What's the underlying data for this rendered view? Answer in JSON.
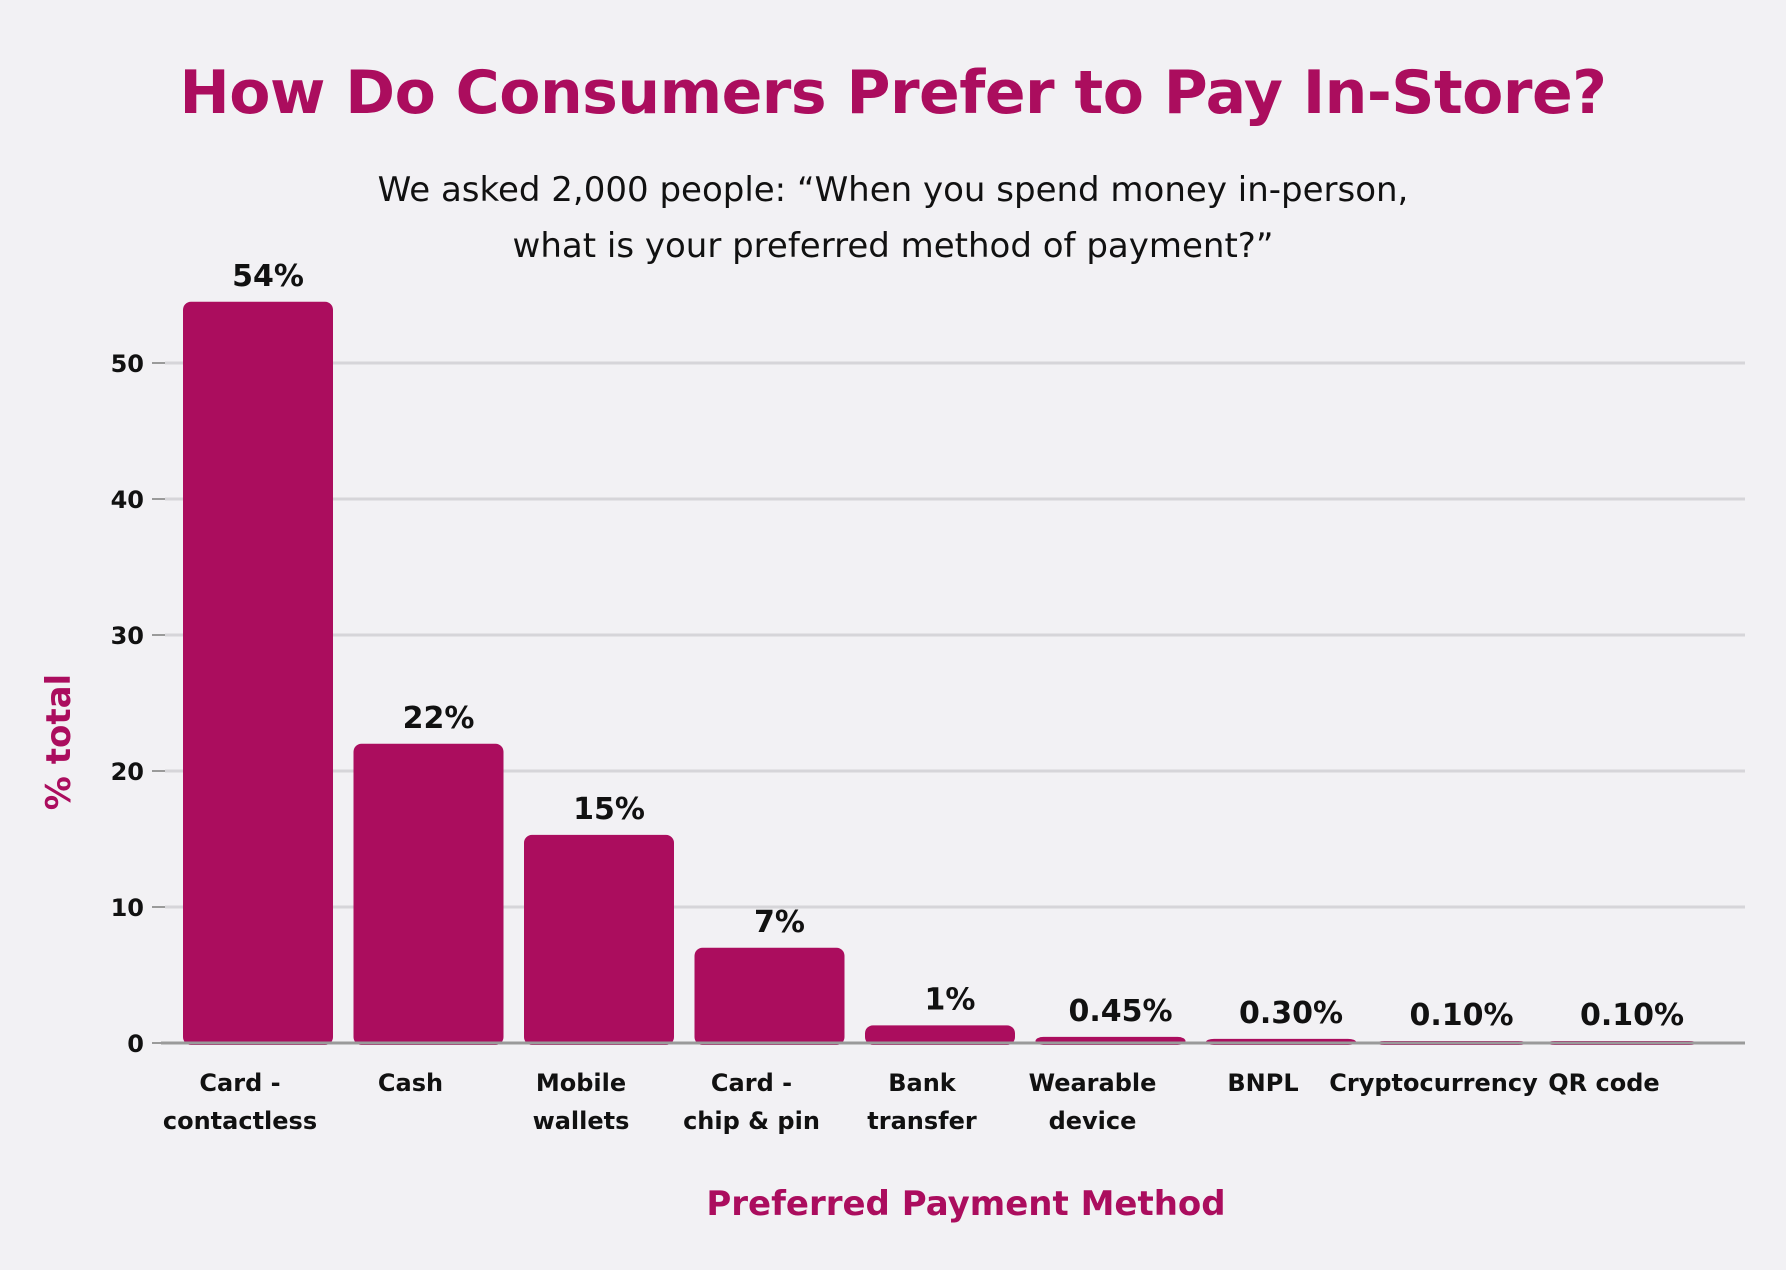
{
  "chart_data": {
    "type": "bar",
    "title": "How Do Consumers Prefer to Pay In-Store?",
    "subtitle_lines": [
      "We asked 2,000 people: “When you spend money in-person,",
      "what is your preferred method of payment?”"
    ],
    "xlabel": "Preferred Payment Method",
    "ylabel": "% total",
    "ylim": [
      0,
      55
    ],
    "yticks": [
      0,
      10,
      20,
      30,
      40,
      50
    ],
    "grid": true,
    "bar_color": "#ab0d5e",
    "categories": [
      [
        "Card -",
        "contactless"
      ],
      [
        "Cash"
      ],
      [
        "Mobile",
        "wallets"
      ],
      [
        "Card -",
        "chip & pin"
      ],
      [
        "Bank",
        "transfer"
      ],
      [
        "Wearable",
        "device"
      ],
      [
        "BNPL"
      ],
      [
        "Cryptocurrency"
      ],
      [
        "QR code"
      ]
    ],
    "values": [
      54.5,
      22,
      15.3,
      7,
      1.3,
      0.45,
      0.3,
      0.1,
      0.1
    ],
    "value_labels": [
      "54%",
      "22%",
      "15%",
      "7%",
      "1%",
      "0.45%",
      "0.30%",
      "0.10%",
      "0.10%"
    ]
  }
}
